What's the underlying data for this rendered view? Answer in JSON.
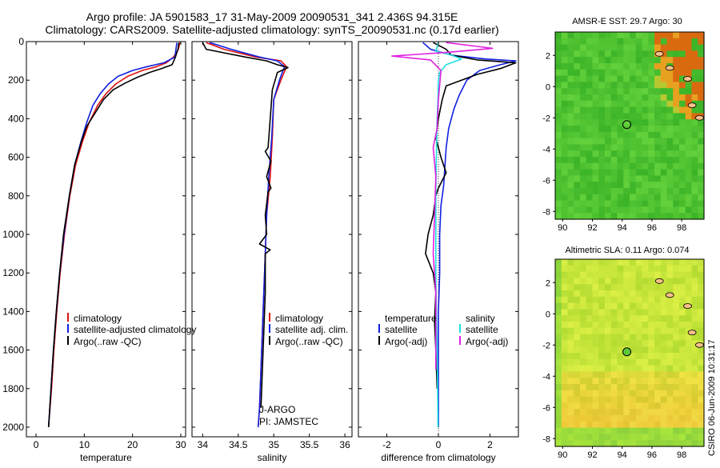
{
  "header": {
    "line1": "Argo profile: JA 5901583_17 31-May-2009 20090531_341 2.436S 94.315E",
    "line2": "Climatology: CARS2009. Satellite-adjusted climatology: synTS_20090531.nc (0.17d earlier)"
  },
  "colors": {
    "climatology": "#e01010",
    "satellite": "#1020e0",
    "argo": "#000000",
    "salinity_satellite": "#20e0e0",
    "salinity_argo": "#e020e0",
    "sst_field": "#5ec83a",
    "sla_field": "#b8e040",
    "land": "#f8c08a"
  },
  "chart_data": [
    {
      "type": "line",
      "xlabel": "temperature",
      "ylabel": "",
      "xlim": [
        -2,
        31
      ],
      "ylim": [
        0,
        2050
      ],
      "y_inverted": true,
      "xticks": [
        0,
        10,
        20,
        30
      ],
      "yticks": [
        0,
        200,
        400,
        600,
        800,
        1000,
        1200,
        1400,
        1600,
        1800,
        2000
      ],
      "legend": [
        "climatology",
        "satellite-adjusted climatology",
        "Argo(..raw -QC)"
      ],
      "legend_position": "lower-right",
      "series": [
        {
          "name": "climatology",
          "color": "#e01010",
          "x": [
            29.8,
            29.5,
            28.5,
            27,
            25,
            22,
            19,
            16.5,
            14.5,
            12.8,
            11,
            9.6,
            8.2,
            7.0,
            5.9,
            5.0,
            4.3,
            3.7,
            3.2,
            2.6
          ],
          "y": [
            5,
            40,
            80,
            110,
            130,
            150,
            180,
            220,
            270,
            330,
            420,
            520,
            640,
            800,
            1000,
            1200,
            1400,
            1600,
            1800,
            2000
          ]
        },
        {
          "name": "satellite-adjusted climatology",
          "color": "#1020e0",
          "x": [
            29.2,
            29.0,
            28.8,
            26.5,
            23,
            20,
            17,
            15,
            13.3,
            11.8,
            10.5,
            9.3,
            8.0,
            6.9,
            5.8,
            4.9,
            4.2,
            3.6,
            3.1,
            2.6
          ],
          "y": [
            5,
            40,
            80,
            110,
            130,
            150,
            180,
            220,
            270,
            330,
            420,
            520,
            640,
            800,
            1000,
            1200,
            1400,
            1600,
            1800,
            2000
          ]
        },
        {
          "name": "Argo(..raw -QC)",
          "color": "#000000",
          "x": [
            29.6,
            29.4,
            28.9,
            28.2,
            26,
            23.5,
            21,
            18.5,
            16,
            14,
            12.5,
            10.5,
            9.4,
            8.0,
            6.9,
            5.7,
            4.9,
            4.2,
            3.6,
            3.1,
            2.6
          ],
          "y": [
            5,
            40,
            80,
            120,
            140,
            160,
            185,
            215,
            250,
            300,
            360,
            440,
            520,
            640,
            800,
            1000,
            1200,
            1400,
            1600,
            1800,
            2000
          ]
        }
      ]
    },
    {
      "type": "line",
      "xlabel": "salinity",
      "ylabel": "",
      "xlim": [
        33.85,
        36.1
      ],
      "ylim": [
        0,
        2050
      ],
      "y_inverted": true,
      "xticks": [
        34,
        34.5,
        35,
        35.5,
        36
      ],
      "legend": [
        "climatology",
        "satellite adj. clim.",
        "Argo(..raw -QC)"
      ],
      "legend_position": "lower-right",
      "annotations": [
        "J-ARGO",
        "PI: JAMSTEC"
      ],
      "series": [
        {
          "name": "climatology",
          "color": "#e01010",
          "x": [
            34.05,
            34.3,
            34.75,
            35.1,
            35.18,
            35.1,
            35.0,
            34.98,
            34.95,
            34.9,
            34.88,
            34.86,
            34.84,
            34.82,
            34.8,
            34.78
          ],
          "y": [
            5,
            40,
            80,
            100,
            130,
            200,
            300,
            500,
            700,
            900,
            1100,
            1300,
            1500,
            1700,
            1900,
            2000
          ]
        },
        {
          "name": "satellite adj. clim.",
          "color": "#1020e0",
          "x": [
            34.1,
            34.4,
            34.8,
            35.05,
            35.15,
            35.08,
            35.0,
            34.97,
            34.93,
            34.9,
            34.88,
            34.86,
            34.84,
            34.82,
            34.8,
            34.78
          ],
          "y": [
            5,
            40,
            80,
            100,
            130,
            200,
            300,
            500,
            700,
            900,
            1100,
            1300,
            1500,
            1700,
            1900,
            2000
          ]
        },
        {
          "name": "Argo(..raw -QC)",
          "color": "#000000",
          "x": [
            34.0,
            34.05,
            34.6,
            34.9,
            35.05,
            35.2,
            35.05,
            34.98,
            34.95,
            34.92,
            34.88,
            34.96,
            34.9,
            34.96,
            34.92,
            34.88,
            34.9,
            34.8,
            34.95,
            34.88,
            34.88,
            34.86,
            34.84,
            34.82
          ],
          "y": [
            5,
            40,
            80,
            100,
            120,
            135,
            160,
            250,
            400,
            550,
            570,
            620,
            700,
            760,
            780,
            900,
            1000,
            1050,
            1080,
            1100,
            1300,
            1500,
            1700,
            1900
          ]
        }
      ]
    },
    {
      "type": "line",
      "xlabel": "difference from climatology",
      "ylabel": "",
      "xlim": [
        -3.1,
        3.1
      ],
      "ylim": [
        0,
        2050
      ],
      "y_inverted": true,
      "xticks": [
        -2,
        0,
        2
      ],
      "legend": [
        "temperature",
        "satellite",
        "Argo(-adj)",
        "salinity",
        "satellite",
        "Argo(-adj)"
      ],
      "legend_position": "lower-center",
      "series": [
        {
          "name": "temperature satellite",
          "color": "#1020e0",
          "x": [
            -0.6,
            -0.3,
            0.5,
            1.8,
            3.0,
            2.4,
            1.6,
            1.1,
            0.8,
            0.6,
            0.4,
            0.3,
            0.25,
            0.2,
            0.1,
            0.05,
            0.05,
            0.0,
            0.0,
            0.0
          ],
          "y": [
            5,
            40,
            70,
            90,
            100,
            120,
            150,
            200,
            280,
            350,
            450,
            550,
            650,
            750,
            850,
            1000,
            1200,
            1400,
            1600,
            2000
          ]
        },
        {
          "name": "temperature Argo(-adj)",
          "color": "#000000",
          "x": [
            -0.2,
            0.3,
            0.5,
            1.5,
            3.0,
            2.4,
            1.5,
            0.3,
            0.15,
            0.0,
            -0.1,
            0.1,
            0.3,
            0.0,
            -0.1,
            -0.2,
            -0.4,
            -0.5,
            -0.2,
            -0.1,
            -0.15,
            -0.1,
            -0.05
          ],
          "y": [
            5,
            40,
            70,
            95,
            110,
            140,
            170,
            230,
            300,
            400,
            500,
            600,
            680,
            760,
            800,
            900,
            1000,
            1100,
            1200,
            1300,
            1450,
            1600,
            1800
          ]
        },
        {
          "name": "salinity satellite",
          "color": "#20e0e0",
          "x": [
            0.0,
            -0.1,
            0.5,
            0.9,
            0.3,
            0.05,
            0.0,
            -0.02,
            -0.05,
            -0.08,
            -0.1,
            -0.1,
            -0.1,
            -0.08,
            -0.05,
            -0.03,
            -0.02
          ],
          "y": [
            5,
            50,
            70,
            90,
            120,
            160,
            200,
            300,
            400,
            600,
            800,
            1000,
            1200,
            1400,
            1600,
            1800,
            2000
          ]
        },
        {
          "name": "salinity Argo(-adj)",
          "color": "#e020e0",
          "x": [
            0.3,
            1.5,
            2.1,
            0.4,
            -1.8,
            -0.3,
            0.1,
            0.0,
            -0.05,
            -0.2,
            -0.1,
            -0.15,
            -0.2,
            -0.1,
            -0.1,
            -0.1
          ],
          "y": [
            5,
            25,
            35,
            55,
            75,
            95,
            150,
            300,
            450,
            550,
            700,
            900,
            1100,
            1300,
            1500,
            1700
          ]
        }
      ]
    },
    {
      "type": "heatmap",
      "title": "AMSR-E SST: 29.7 Argo: 30",
      "xlim": [
        89.5,
        99.5
      ],
      "ylim": [
        -8.5,
        3.5
      ],
      "xticks": [
        90,
        92,
        94,
        96,
        98
      ],
      "yticks": [
        2,
        0,
        -2,
        -4,
        -6,
        -8
      ],
      "marker": {
        "lon": 94.315,
        "lat": -2.436
      }
    },
    {
      "type": "heatmap",
      "title": "Altimetric SLA: 0.11 Argo: 0.074",
      "xlim": [
        89.5,
        99.5
      ],
      "ylim": [
        -8.5,
        3.5
      ],
      "xticks": [
        90,
        92,
        94,
        96,
        98
      ],
      "yticks": [
        2,
        0,
        -2,
        -4,
        -6,
        -8
      ],
      "marker": {
        "lon": 94.315,
        "lat": -2.436
      }
    }
  ],
  "credit": "CSIRO 06-Jun-2009 10:31:17"
}
